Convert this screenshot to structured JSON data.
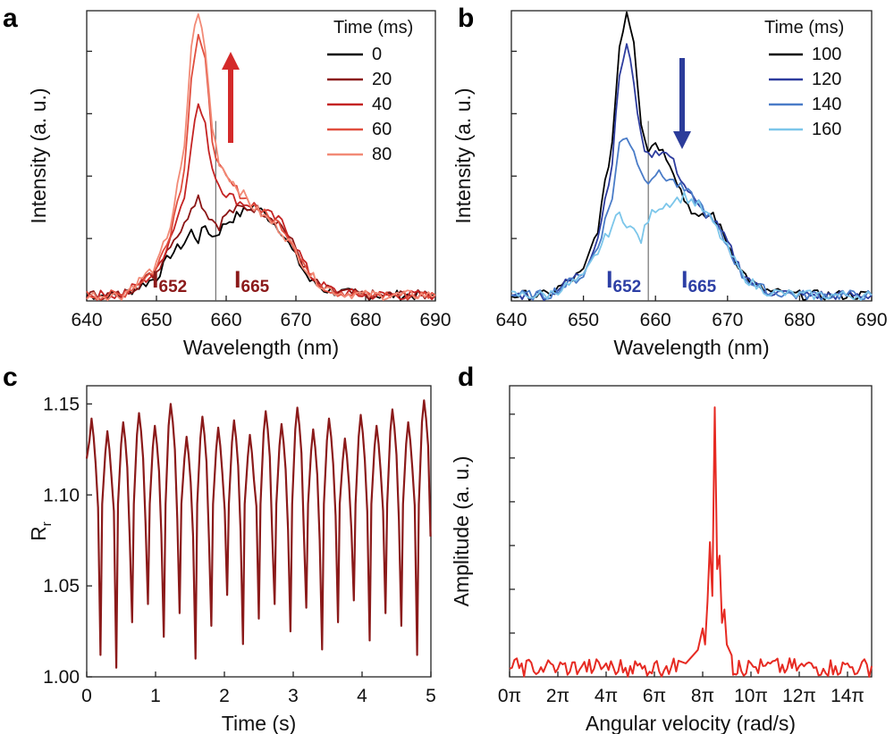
{
  "chart_data": [
    {
      "panel": "a",
      "type": "line",
      "xlabel": "Wavelength (nm)",
      "ylabel": "Intensity (a. u.)",
      "xlim": [
        640,
        690
      ],
      "xticks": [
        640,
        650,
        660,
        670,
        680,
        690
      ],
      "ylim": [
        0,
        1
      ],
      "legend_title": "Time (ms)",
      "legend_position": "top-right",
      "divider_x": 658.5,
      "arrow_direction": "up",
      "arrow_color": "#d42a2a",
      "annotation_left": "I",
      "annotation_left_sub": "652",
      "annotation_right": "I",
      "annotation_right_sub": "665",
      "annotation_color": "#8b1a1a",
      "x": [
        640,
        645,
        650,
        652,
        654,
        655,
        656,
        657,
        658,
        659,
        660,
        662,
        664,
        666,
        668,
        670,
        672,
        674,
        676,
        680,
        685,
        690
      ],
      "series": [
        {
          "name": "0",
          "color": "#000000",
          "values": [
            0.02,
            0.02,
            0.08,
            0.16,
            0.2,
            0.24,
            0.21,
            0.26,
            0.22,
            0.24,
            0.27,
            0.3,
            0.33,
            0.29,
            0.24,
            0.15,
            0.07,
            0.04,
            0.03,
            0.02,
            0.02,
            0.02
          ]
        },
        {
          "name": "20",
          "color": "#8b1515",
          "values": [
            0.02,
            0.02,
            0.1,
            0.2,
            0.26,
            0.33,
            0.36,
            0.31,
            0.28,
            0.26,
            0.3,
            0.32,
            0.32,
            0.3,
            0.26,
            0.18,
            0.08,
            0.04,
            0.03,
            0.02,
            0.02,
            0.02
          ]
        },
        {
          "name": "40",
          "color": "#c42323",
          "values": [
            0.02,
            0.02,
            0.1,
            0.22,
            0.36,
            0.55,
            0.68,
            0.6,
            0.46,
            0.4,
            0.37,
            0.34,
            0.33,
            0.3,
            0.27,
            0.19,
            0.09,
            0.05,
            0.03,
            0.02,
            0.02,
            0.02
          ]
        },
        {
          "name": "60",
          "color": "#e04e3e",
          "values": [
            0.02,
            0.02,
            0.11,
            0.24,
            0.45,
            0.78,
            0.92,
            0.82,
            0.56,
            0.46,
            0.42,
            0.37,
            0.33,
            0.29,
            0.26,
            0.18,
            0.09,
            0.05,
            0.03,
            0.02,
            0.02,
            0.02
          ]
        },
        {
          "name": "80",
          "color": "#f28a76",
          "values": [
            0.02,
            0.02,
            0.12,
            0.26,
            0.52,
            0.88,
            1.0,
            0.86,
            0.6,
            0.48,
            0.44,
            0.38,
            0.32,
            0.28,
            0.24,
            0.17,
            0.09,
            0.05,
            0.03,
            0.02,
            0.02,
            0.02
          ]
        }
      ]
    },
    {
      "panel": "b",
      "type": "line",
      "xlabel": "Wavelength (nm)",
      "ylabel": "Intensity (a. u.)",
      "xlim": [
        640,
        690
      ],
      "xticks": [
        640,
        650,
        660,
        670,
        680,
        690
      ],
      "ylim": [
        0,
        1
      ],
      "legend_title": "Time (ms)",
      "legend_position": "top-right",
      "divider_x": 659,
      "arrow_direction": "down",
      "arrow_color": "#2b3c9a",
      "annotation_left": "I",
      "annotation_left_sub": "652",
      "annotation_right": "I",
      "annotation_right_sub": "665",
      "annotation_color": "#2d3fa5",
      "x": [
        640,
        645,
        650,
        652,
        654,
        655,
        656,
        657,
        658,
        659,
        660,
        662,
        664,
        666,
        668,
        670,
        672,
        674,
        676,
        680,
        685,
        690
      ],
      "series": [
        {
          "name": "100",
          "color": "#000000",
          "values": [
            0.02,
            0.02,
            0.1,
            0.25,
            0.55,
            0.88,
            1.0,
            0.9,
            0.62,
            0.52,
            0.55,
            0.48,
            0.35,
            0.28,
            0.3,
            0.2,
            0.1,
            0.05,
            0.03,
            0.02,
            0.02,
            0.02
          ]
        },
        {
          "name": "120",
          "color": "#2d3c9e",
          "values": [
            0.02,
            0.02,
            0.1,
            0.22,
            0.48,
            0.78,
            0.88,
            0.76,
            0.56,
            0.5,
            0.52,
            0.5,
            0.4,
            0.32,
            0.28,
            0.2,
            0.1,
            0.05,
            0.03,
            0.02,
            0.02,
            0.02
          ]
        },
        {
          "name": "140",
          "color": "#4a7cc8",
          "values": [
            0.02,
            0.02,
            0.09,
            0.19,
            0.36,
            0.54,
            0.57,
            0.52,
            0.44,
            0.42,
            0.44,
            0.42,
            0.38,
            0.34,
            0.27,
            0.19,
            0.09,
            0.05,
            0.03,
            0.02,
            0.02,
            0.02
          ]
        },
        {
          "name": "160",
          "color": "#7cc6ea",
          "values": [
            0.02,
            0.02,
            0.08,
            0.17,
            0.26,
            0.3,
            0.27,
            0.24,
            0.21,
            0.28,
            0.32,
            0.34,
            0.36,
            0.33,
            0.27,
            0.18,
            0.09,
            0.05,
            0.03,
            0.02,
            0.02,
            0.02
          ]
        }
      ]
    },
    {
      "panel": "c",
      "type": "line",
      "xlabel": "Time (s)",
      "ylabel": "R",
      "ylabel_sub": "r",
      "xlim": [
        0,
        5
      ],
      "ylim": [
        1.0,
        1.16
      ],
      "xticks": [
        0,
        1,
        2,
        3,
        4,
        5
      ],
      "yticks": [
        1.0,
        1.05,
        1.1,
        1.15
      ],
      "ytick_labels": [
        "1.00",
        "1.05",
        "1.10",
        "1.15"
      ],
      "color": "#8b1a1a",
      "oscillation_period_s": 0.23,
      "peak_values": [
        1.142,
        1.135,
        1.14,
        1.145,
        1.138,
        1.15,
        1.132,
        1.143,
        1.137,
        1.141,
        1.133,
        1.146,
        1.139,
        1.148,
        1.136,
        1.142,
        1.131,
        1.144,
        1.138,
        1.147,
        1.14,
        1.152
      ],
      "trough_values": [
        1.012,
        1.005,
        1.03,
        1.04,
        1.022,
        1.035,
        1.01,
        1.028,
        1.045,
        1.018,
        1.032,
        1.04,
        1.025,
        1.038,
        1.015,
        1.03,
        1.042,
        1.02,
        1.035,
        1.028,
        1.012,
        1.04
      ]
    },
    {
      "panel": "d",
      "type": "line",
      "xlabel": "Angular velocity (rad/s)",
      "ylabel": "Amplitude (a. u.)",
      "xlim": [
        0,
        15
      ],
      "ylim": [
        0,
        1.08
      ],
      "xtick_values": [
        0,
        2,
        4,
        6,
        8,
        10,
        12,
        14
      ],
      "xtick_labels": [
        "0π",
        "2π",
        "4π",
        "6π",
        "8π",
        "10π",
        "12π",
        "14π"
      ],
      "color": "#e62a22",
      "x_pi": [
        0,
        0.5,
        1,
        1.5,
        2,
        2.5,
        3,
        3.5,
        4,
        4.5,
        5,
        5.5,
        6,
        6.5,
        7,
        7.3,
        7.6,
        7.8,
        8.0,
        8.1,
        8.2,
        8.3,
        8.4,
        8.5,
        8.6,
        8.7,
        8.8,
        8.9,
        9.0,
        9.2,
        9.5,
        10,
        10.5,
        11,
        11.5,
        12,
        12.5,
        13,
        13.5,
        14,
        14.5,
        15
      ],
      "values": [
        0.03,
        0.05,
        0.02,
        0.04,
        0.03,
        0.02,
        0.04,
        0.03,
        0.05,
        0.02,
        0.04,
        0.03,
        0.05,
        0.04,
        0.06,
        0.05,
        0.08,
        0.1,
        0.18,
        0.12,
        0.28,
        0.5,
        0.3,
        1.0,
        0.4,
        0.45,
        0.2,
        0.25,
        0.12,
        0.08,
        0.06,
        0.05,
        0.04,
        0.06,
        0.03,
        0.04,
        0.05,
        0.03,
        0.04,
        0.05,
        0.03,
        0.04
      ]
    }
  ]
}
